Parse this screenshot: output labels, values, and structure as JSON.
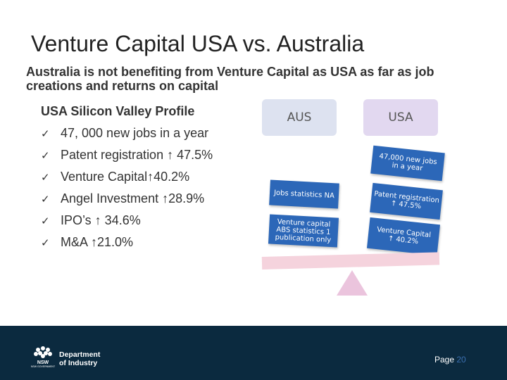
{
  "slide": {
    "title": "Venture Capital USA vs. Australia",
    "subtitle": "Australia is not benefiting from Venture Capital as USA as far as job creations and returns on capital"
  },
  "profile": {
    "heading": "USA Silicon Valley Profile",
    "bullets": [
      {
        "check": "✓",
        "text": "47, 000  new jobs in a year"
      },
      {
        "check": "✓",
        "text": "Patent registration ↑ 47.5%"
      },
      {
        "check": "✓",
        "text": "Venture Capital↑40.2%"
      },
      {
        "check": "✓",
        "text": "Angel Investment ↑28.9%"
      },
      {
        "check": "✓",
        "text": "IPO’s ↑ 34.6%"
      },
      {
        "check": "✓",
        "text": "M&A ↑21.0%"
      }
    ]
  },
  "scale": {
    "aus_label": "AUS",
    "usa_label": "USA",
    "aus_boxes": [
      {
        "text": "Jobs statistics NA"
      },
      {
        "text": "Venture capital ABS statistics 1 publication only"
      }
    ],
    "usa_boxes": [
      {
        "text": "47,000 new jobs in a year"
      },
      {
        "text": "Patent registration ↑ 47.5%"
      },
      {
        "text": "Venture Capital ↑ 40.2%"
      }
    ]
  },
  "footer": {
    "logo_text": "NSW GOVERNMENT",
    "department_line1": "Department",
    "department_line2": "of Industry",
    "page_label": "Page",
    "page_number": "20"
  },
  "colors": {
    "box_blue": "#2c67b8",
    "footer_navy": "#0b2a3f",
    "beam_pink": "#f5d3dd",
    "fulcrum_pink": "#ebc4dd"
  }
}
